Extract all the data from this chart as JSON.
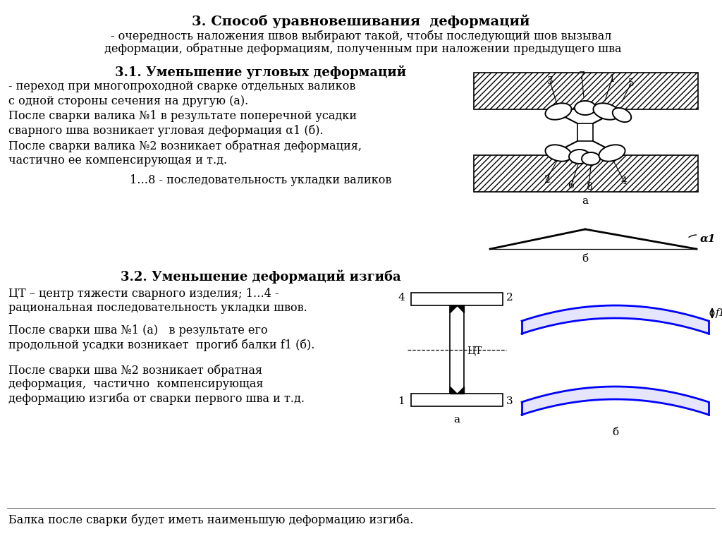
{
  "title": "3. Способ уравновешивания  деформаций",
  "subtitle1": "- очередность наложения швов выбирают такой, чтобы последующий шов вызывал",
  "subtitle2": " деформации, обратные деформациям, полученным при наложении предыдущего шва",
  "section31_title": "3.1. Уменьшение угловых деформаций",
  "section31_lines": [
    "- переход при многопроходной сварке отдельных валиков",
    "с одной стороны сечения на другую (а).",
    "После сварки валика №1 в результате поперечной усадки",
    "сварного шва возникает угловая деформация α1 (б).",
    "После сварки валика №2 возникает обратная деформация,",
    "частично ее компенсирующая и т.д."
  ],
  "section31_caption": "1…8 - последовательность укладки валиков",
  "section32_title": "3.2. Уменьшение деформаций изгиба",
  "section32_text1a": "ЦТ – центр тяжести сварного изделия; 1…4 -",
  "section32_text1b": "рациональная последовательность укладки швов.",
  "section32_text2a": "После сварки шва №1 (а)   в результате его",
  "section32_text2b": "продольной усадки возникает  прогиб балки f1 (б).",
  "section32_text3a": "После сварки шва №2 возникает обратная",
  "section32_text3b": "деформация,  частично  компенсирующая",
  "section32_text3c": "деформацию изгиба от сварки первого шва и т.д.",
  "footer": "Балка после сварки будет иметь наименьшую деформацию изгиба.",
  "bg_color": "#ffffff",
  "text_color": "#000000"
}
